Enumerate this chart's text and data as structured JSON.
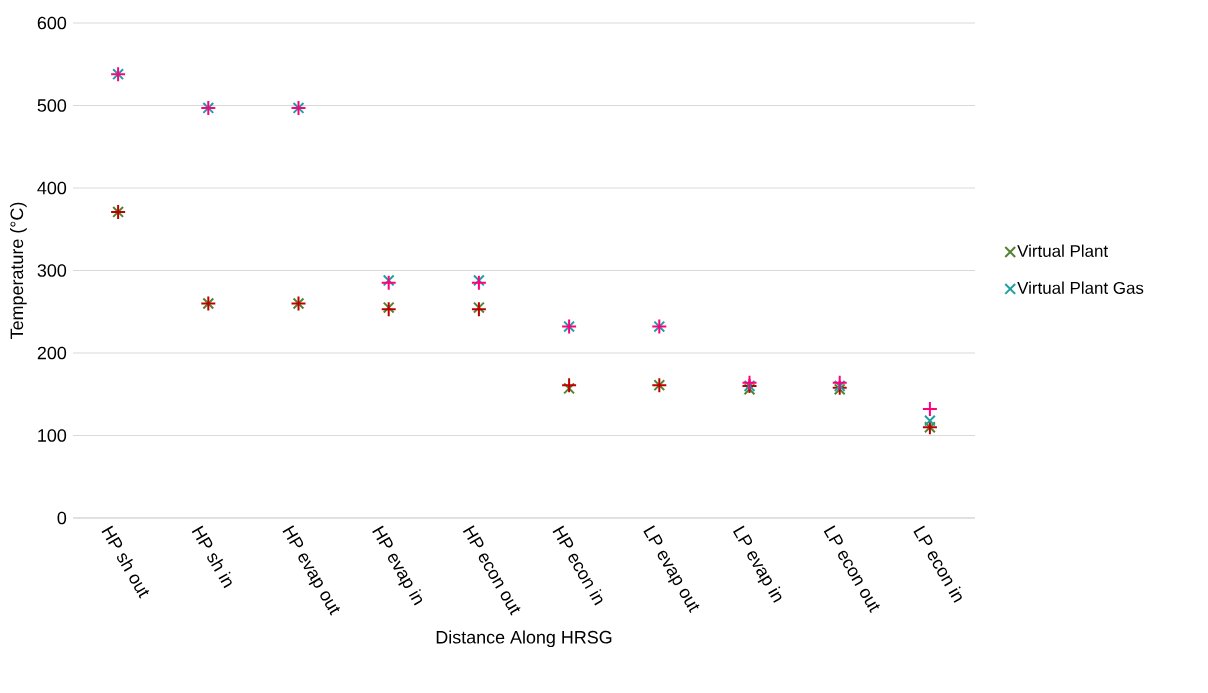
{
  "chart_data": {
    "type": "scatter",
    "xlabel": "Distance Along HRSG",
    "ylabel": "Temperature (°C)",
    "categories": [
      "HP sh out",
      "HP sh in",
      "HP evap out",
      "HP evap in",
      "HP econ out",
      "HP econ in",
      "LP evap out",
      "LP evap in",
      "LP econ out",
      "LP econ in"
    ],
    "series": [
      {
        "name": "Virtual Plant",
        "color": "#548235",
        "marker": "cross",
        "values": [
          371,
          260,
          260,
          255,
          255,
          157,
          161,
          156,
          156,
          110
        ]
      },
      {
        "color": "#c00000",
        "marker": "plus",
        "values": [
          371,
          260,
          260,
          253,
          253,
          161,
          161,
          160,
          158,
          110
        ]
      },
      {
        "name": "Virtual Plant Gas",
        "color": "#1fa0a0",
        "marker": "cross",
        "values": [
          538,
          497,
          497,
          288,
          288,
          232,
          232,
          160,
          160,
          118
        ]
      },
      {
        "color": "#ff0080",
        "marker": "plus",
        "values": [
          538,
          497,
          497,
          285,
          285,
          232,
          232,
          164,
          164,
          132
        ]
      }
    ],
    "ylim": [
      0,
      600
    ],
    "yticks": [
      0,
      100,
      200,
      300,
      400,
      500,
      600
    ],
    "grid": "y",
    "legend": "right"
  }
}
